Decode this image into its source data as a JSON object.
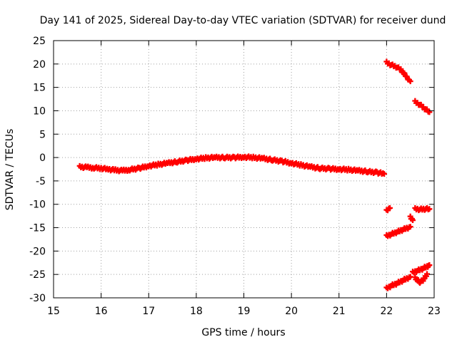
{
  "chart_data": {
    "type": "scatter",
    "title": "Day 141 of 2025, Sidereal Day-to-day VTEC variation (SDTVAR) for receiver dund",
    "xlabel": "GPS time / hours",
    "ylabel": "SDTVAR / TECUs",
    "xlim": [
      15,
      23
    ],
    "ylim": [
      -30,
      25
    ],
    "xticks": [
      15,
      16,
      17,
      18,
      19,
      20,
      21,
      22,
      23
    ],
    "yticks": [
      -30,
      -25,
      -20,
      -15,
      -10,
      -5,
      0,
      5,
      10,
      15,
      20,
      25
    ],
    "grid": true,
    "marker_color": "#ff0000",
    "series": [
      {
        "name": "main",
        "x": [
          15.55,
          15.7,
          15.85,
          16.0,
          16.15,
          16.3,
          16.45,
          16.6,
          16.8,
          17.0,
          17.2,
          17.4,
          17.6,
          17.8,
          18.0,
          18.2,
          18.4,
          18.6,
          18.8,
          19.0,
          19.2,
          19.4,
          19.6,
          19.8,
          20.0,
          20.2,
          20.4,
          20.6,
          20.8,
          21.0,
          21.2,
          21.4,
          21.6,
          21.8,
          21.95
        ],
        "y": [
          -2.0,
          -2.1,
          -2.2,
          -2.3,
          -2.5,
          -2.7,
          -2.8,
          -2.6,
          -2.3,
          -1.8,
          -1.5,
          -1.2,
          -0.9,
          -0.6,
          -0.3,
          -0.1,
          0.0,
          0.0,
          0.0,
          0.1,
          0.0,
          -0.2,
          -0.5,
          -0.8,
          -1.2,
          -1.6,
          -2.0,
          -2.3,
          -2.4,
          -2.5,
          -2.6,
          -2.8,
          -3.0,
          -3.2,
          -3.5
        ]
      },
      {
        "name": "seg1",
        "x": [
          22.0,
          22.1,
          22.2,
          22.3,
          22.4,
          22.5
        ],
        "y": [
          20.3,
          19.8,
          19.4,
          18.8,
          17.5,
          16.3
        ]
      },
      {
        "name": "seg2",
        "x": [
          22.6,
          22.7,
          22.8,
          22.9
        ],
        "y": [
          11.9,
          11.3,
          10.5,
          9.7
        ]
      },
      {
        "name": "seg3",
        "x": [
          22.0,
          22.07
        ],
        "y": [
          -11.4,
          -10.8
        ]
      },
      {
        "name": "seg4",
        "x": [
          22.5,
          22.55
        ],
        "y": [
          -12.8,
          -13.4
        ]
      },
      {
        "name": "seg5",
        "x": [
          22.6,
          22.7,
          22.8,
          22.9
        ],
        "y": [
          -11.0,
          -11.1,
          -11.0,
          -11.0
        ]
      },
      {
        "name": "seg6",
        "x": [
          22.0,
          22.1,
          22.2,
          22.3,
          22.4,
          22.5
        ],
        "y": [
          -16.8,
          -16.4,
          -16.0,
          -15.6,
          -15.2,
          -14.8
        ]
      },
      {
        "name": "seg7",
        "x": [
          22.0,
          22.1,
          22.2,
          22.3,
          22.4,
          22.5
        ],
        "y": [
          -28.0,
          -27.4,
          -27.0,
          -26.5,
          -26.0,
          -25.5
        ]
      },
      {
        "name": "seg8",
        "x": [
          22.55,
          22.65,
          22.75,
          22.85,
          22.9
        ],
        "y": [
          -24.6,
          -24.2,
          -23.8,
          -23.3,
          -23.0
        ]
      },
      {
        "name": "seg9",
        "x": [
          22.6,
          22.65,
          22.7,
          22.75,
          22.8,
          22.85
        ],
        "y": [
          -25.8,
          -26.3,
          -26.6,
          -26.4,
          -25.7,
          -24.9
        ]
      }
    ]
  }
}
